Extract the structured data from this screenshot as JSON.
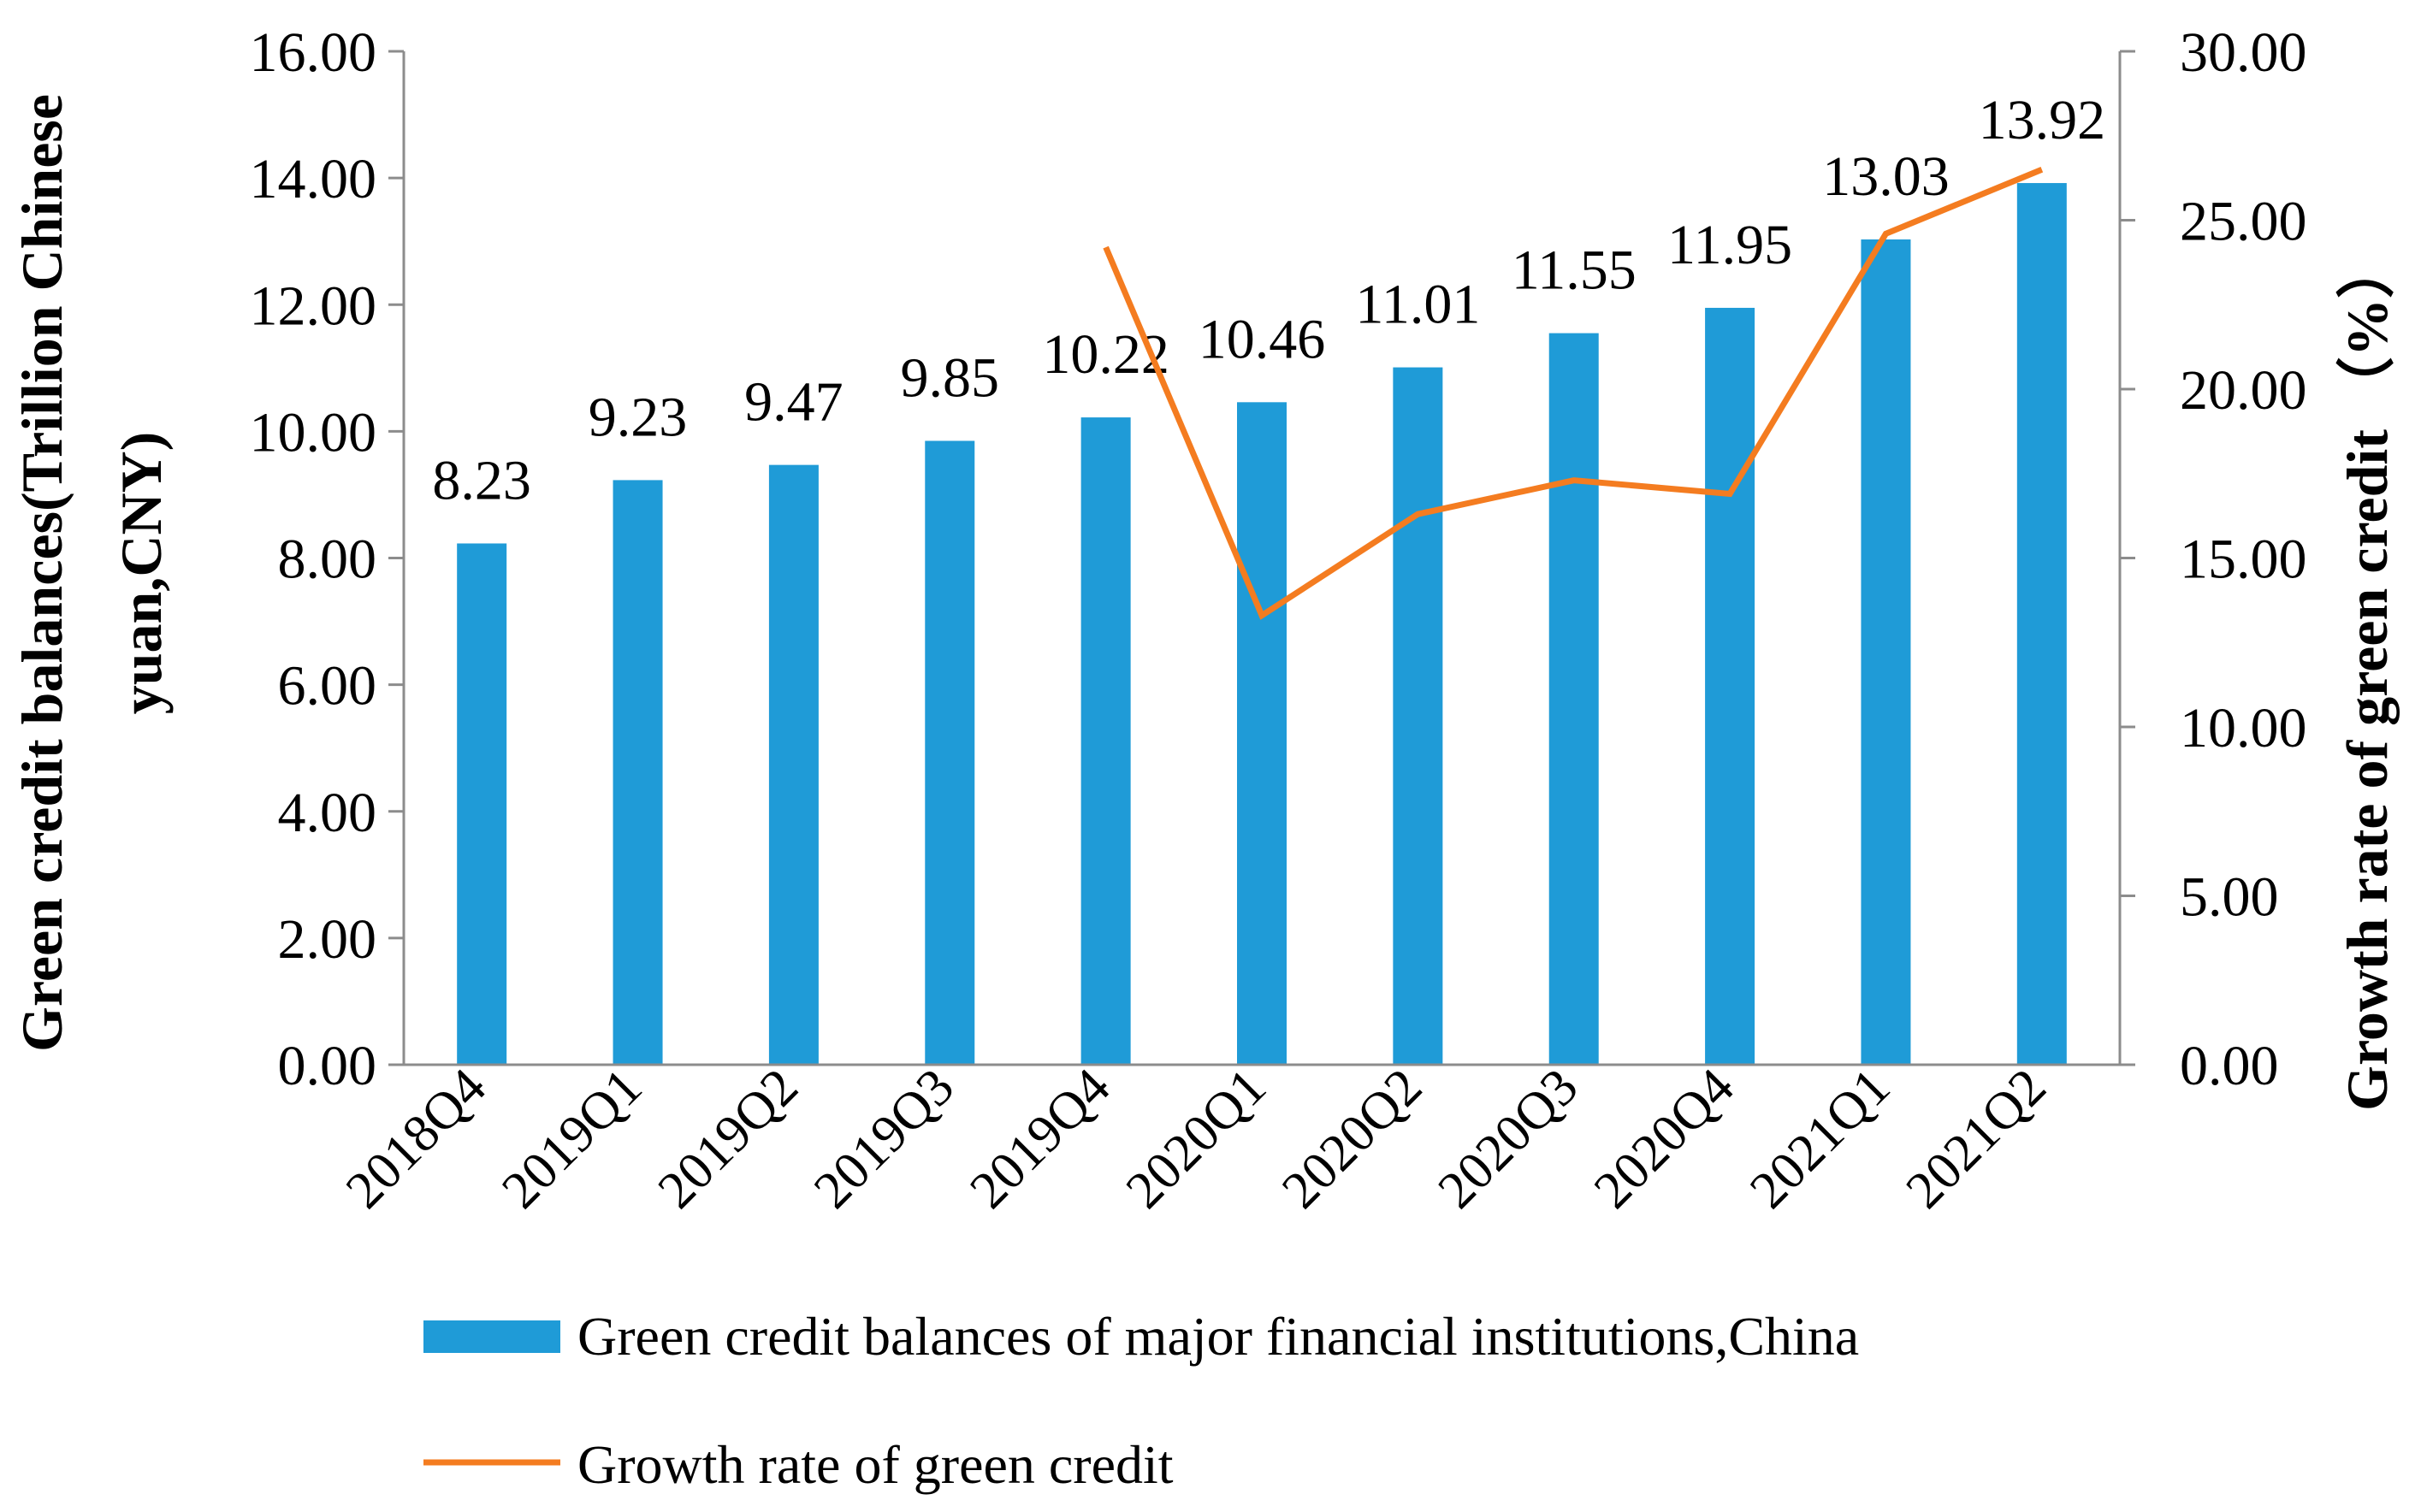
{
  "chart_data": {
    "type": "bar",
    "categories": [
      "2018Q4",
      "2019Q1",
      "2019Q2",
      "2019Q3",
      "2019Q4",
      "2020Q1",
      "2020Q2",
      "2020Q3",
      "2020Q4",
      "2021Q1",
      "2021Q2"
    ],
    "series": [
      {
        "name": "Green credit balances of major financial institutions,China",
        "type": "bar",
        "axis": "left",
        "color": "#1f9bd7",
        "values": [
          8.23,
          9.23,
          9.47,
          9.85,
          10.22,
          10.46,
          11.01,
          11.55,
          11.95,
          13.03,
          13.92
        ],
        "labels": [
          "8.23",
          "9.23",
          "9.47",
          "9.85",
          "10.22",
          "10.46",
          "11.01",
          "11.55",
          "11.95",
          "13.03",
          "13.92"
        ]
      },
      {
        "name": "Growth rate of green credit",
        "type": "line",
        "axis": "right",
        "color": "#f47c20",
        "values": [
          null,
          null,
          null,
          null,
          24.2,
          13.3,
          16.3,
          17.3,
          16.9,
          24.6,
          26.5
        ]
      }
    ],
    "y_left": {
      "title_line1": "Green credit balances(Trillion Chinese",
      "title_line2": "yuan,CNY)",
      "range": [
        0,
        16
      ],
      "ticks": [
        "0.00",
        "2.00",
        "4.00",
        "6.00",
        "8.00",
        "10.00",
        "12.00",
        "14.00",
        "16.00"
      ]
    },
    "y_right": {
      "title": "Growth rate of green credit （%）",
      "range": [
        0,
        30
      ],
      "ticks": [
        "0.00",
        "5.00",
        "10.00",
        "15.00",
        "20.00",
        "25.00",
        "30.00"
      ]
    },
    "grid": false,
    "legend_position": "bottom"
  }
}
